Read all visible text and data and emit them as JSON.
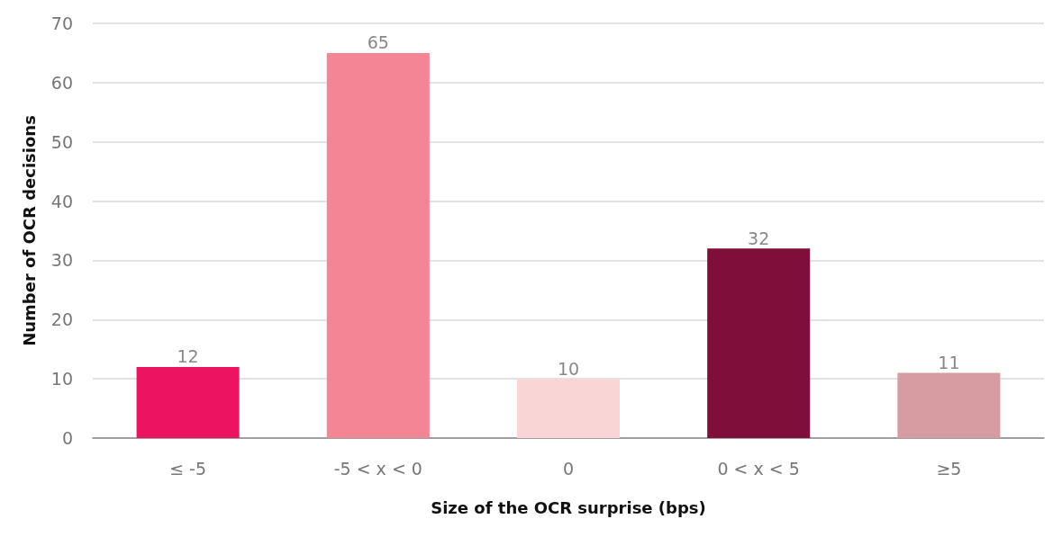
{
  "chart_data": {
    "type": "bar",
    "xlabel": "Size of the OCR surprise (bps)",
    "ylabel": "Number of OCR decisions",
    "categories": [
      "≤ -5",
      "-5 < x < 0",
      "0",
      "0 < x < 5",
      "≥5"
    ],
    "values": [
      12,
      65,
      10,
      32,
      11
    ],
    "colors": [
      "#ec1461",
      "#f38594",
      "#f9d5d6",
      "#7f0e3a",
      "#d69ca1"
    ],
    "ylim": [
      0,
      70
    ],
    "yticks": [
      0,
      10,
      20,
      30,
      40,
      50,
      60,
      70
    ],
    "grid": "y",
    "data_labels": true
  }
}
